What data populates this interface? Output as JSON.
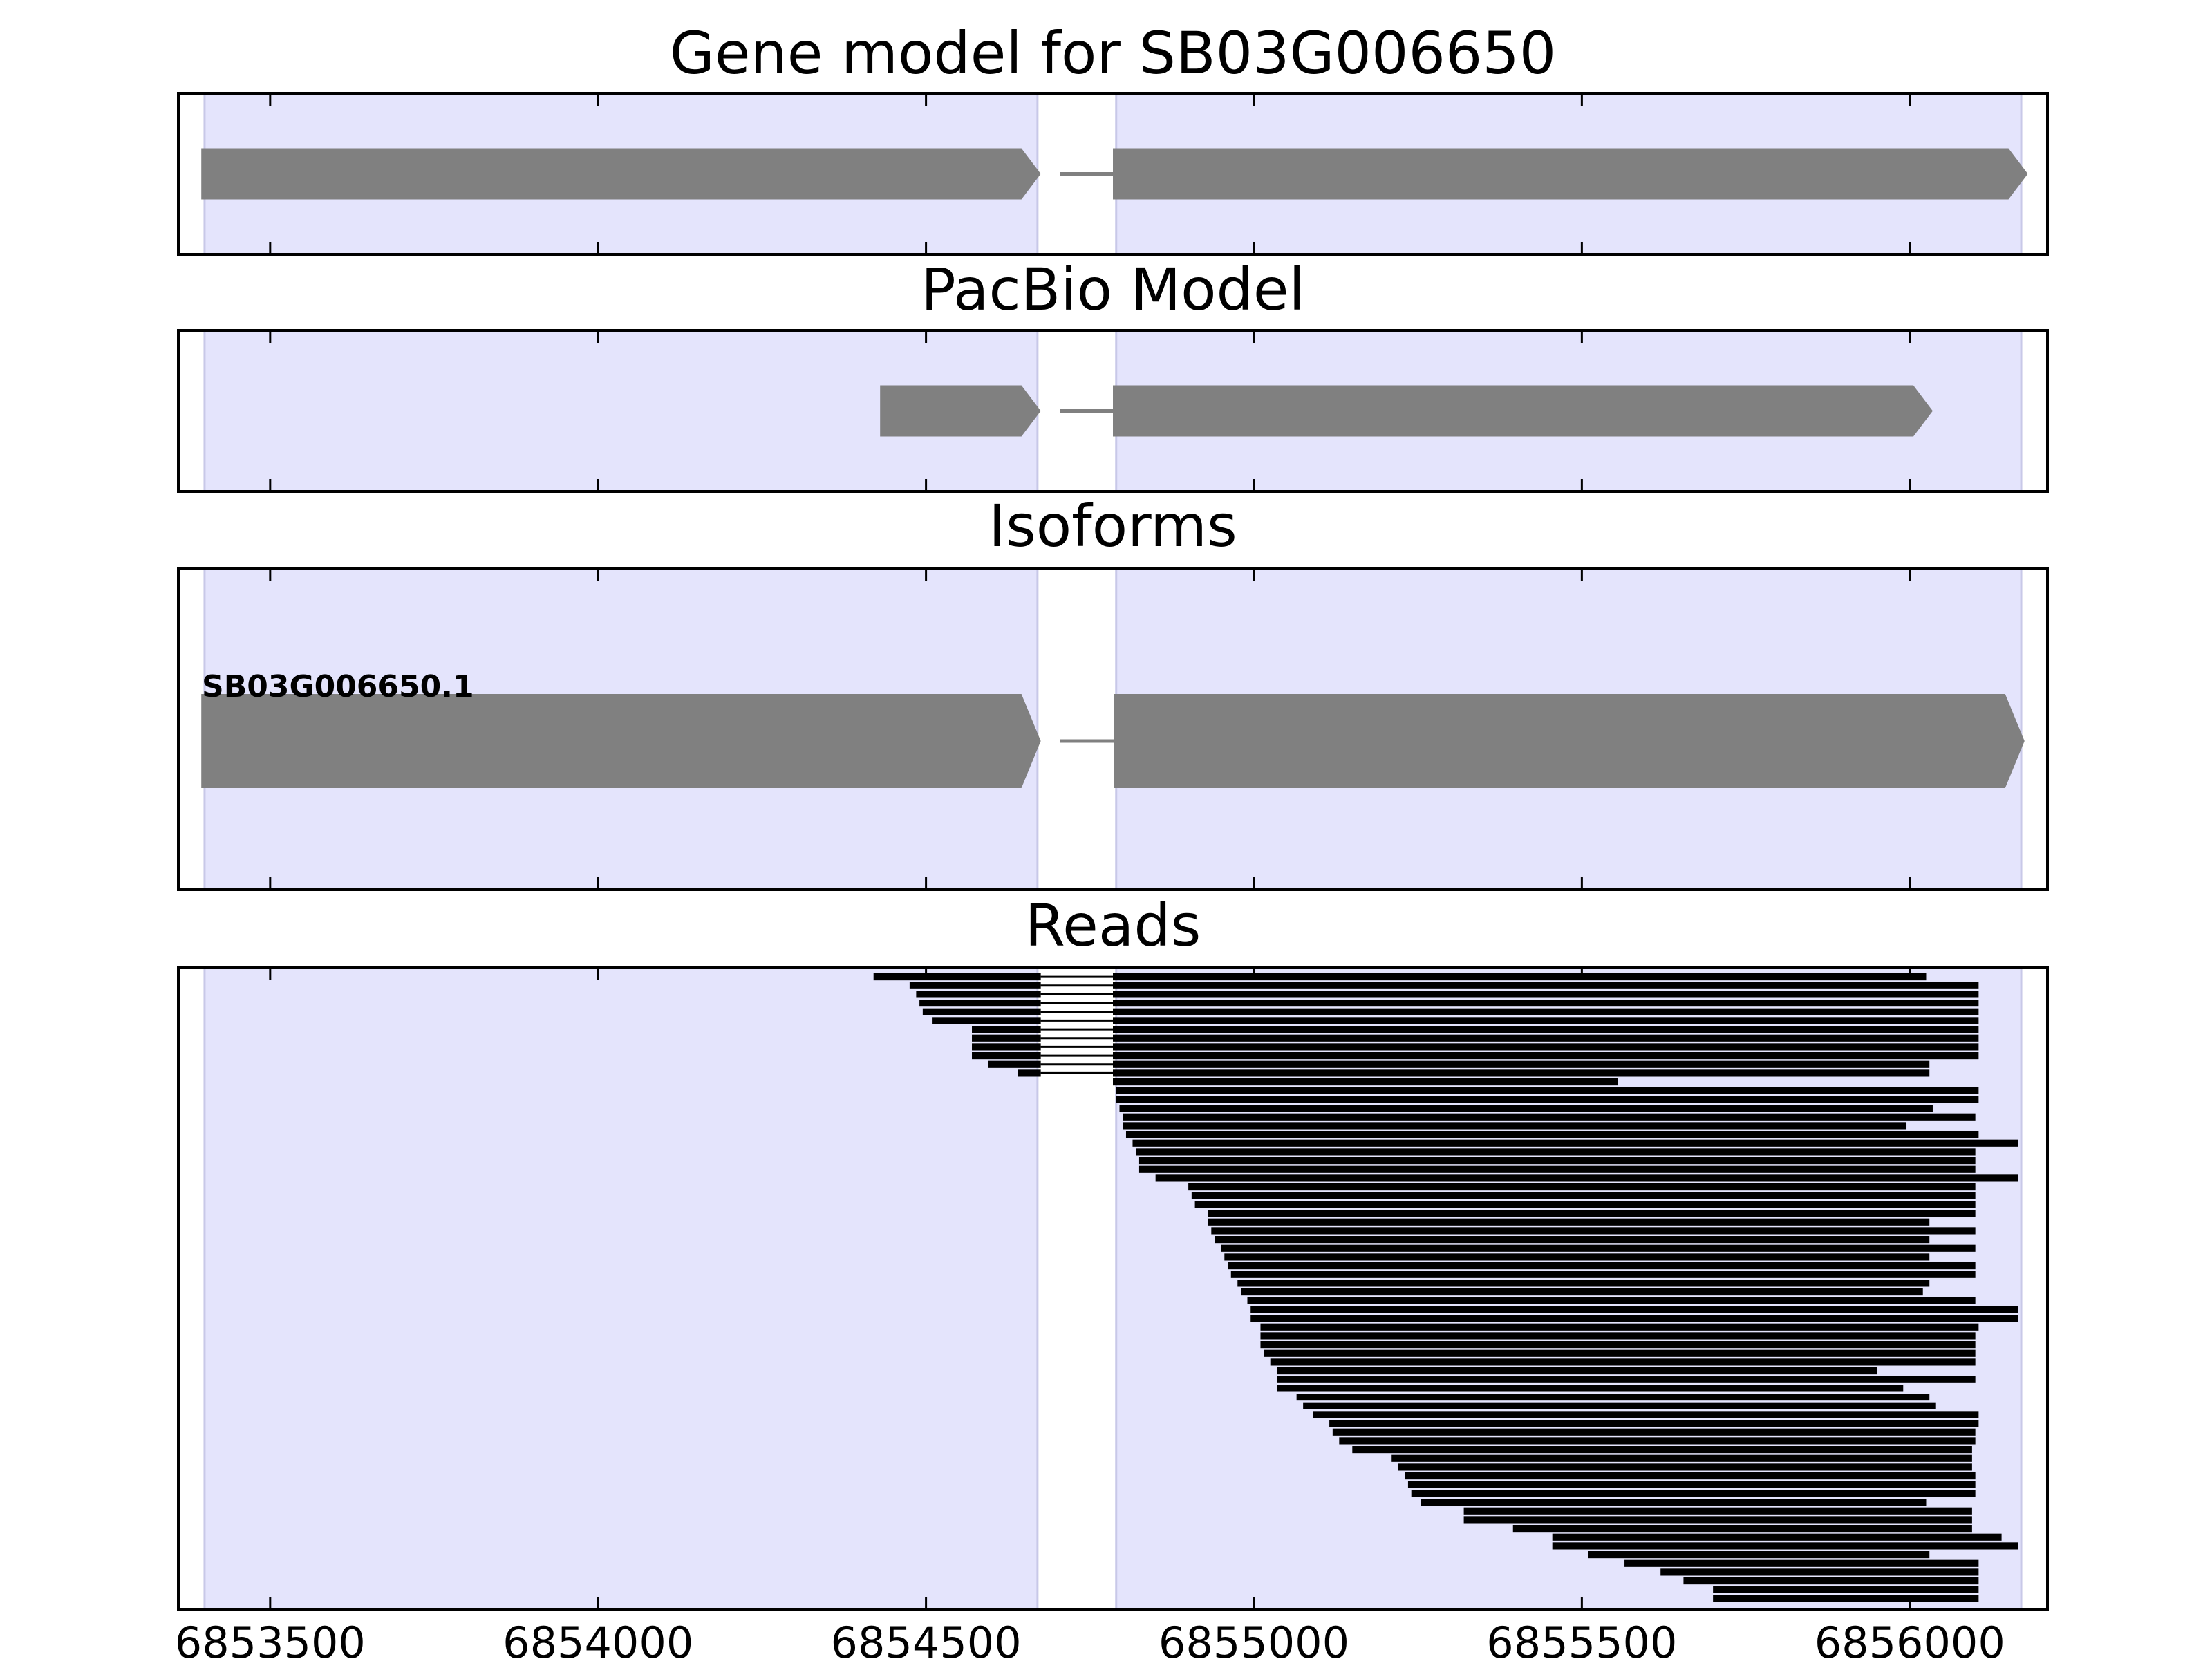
{
  "chart_data": {
    "type": "gene-track",
    "x_axis": {
      "ticks": [
        6853500,
        6854000,
        6854500,
        6855000,
        6855500,
        6856000
      ],
      "tick_labels": [
        "6853500",
        "6854000",
        "6854500",
        "6855000",
        "6855500",
        "6856000"
      ],
      "xlim": [
        6853360,
        6856210
      ]
    },
    "exon_regions": [
      [
        6853400,
        6854670
      ],
      [
        6854790,
        6856170
      ]
    ],
    "colors": {
      "exon_region": "#e4e4fc",
      "exon_region_edge": "#c8c8e8",
      "gene_block": "#808080",
      "read": "#000000",
      "intron": "#808080"
    },
    "panels": [
      {
        "id": "gene-model",
        "title": "Gene model for SB03G006650",
        "blocks": [
          {
            "start": 6853395,
            "end": 6854675,
            "arrow": false
          },
          {
            "start": 6854785,
            "end": 6856180,
            "arrow": true
          }
        ]
      },
      {
        "id": "pacbio-model",
        "title": "PacBio Model",
        "blocks": [
          {
            "start": 6854430,
            "end": 6854675,
            "arrow": false
          },
          {
            "start": 6854785,
            "end": 6856035,
            "arrow": true
          }
        ]
      },
      {
        "id": "isoforms",
        "title": "Isoforms",
        "isoform_label": "SB03G006650.1",
        "blocks": [
          {
            "start": 6853395,
            "end": 6854675,
            "arrow": false
          },
          {
            "start": 6854787,
            "end": 6856175,
            "arrow": true
          }
        ]
      },
      {
        "id": "reads",
        "title": "Reads",
        "junction_start": 6854675,
        "junction_end": 6854785,
        "reads": [
          {
            "start": 6854420,
            "end": 6856025
          },
          {
            "start": 6854475,
            "end": 6856105
          },
          {
            "start": 6854485,
            "end": 6856105
          },
          {
            "start": 6854490,
            "end": 6856105
          },
          {
            "start": 6854495,
            "end": 6856105
          },
          {
            "start": 6854510,
            "end": 6856105
          },
          {
            "start": 6854570,
            "end": 6856105
          },
          {
            "start": 6854570,
            "end": 6856105
          },
          {
            "start": 6854570,
            "end": 6856105
          },
          {
            "start": 6854570,
            "end": 6856105
          },
          {
            "start": 6854595,
            "end": 6856030
          },
          {
            "start": 6854640,
            "end": 6856030
          },
          {
            "start": 6854785,
            "end": 6855555
          },
          {
            "start": 6854790,
            "end": 6856105
          },
          {
            "start": 6854790,
            "end": 6856105
          },
          {
            "start": 6854795,
            "end": 6856035
          },
          {
            "start": 6854800,
            "end": 6856100
          },
          {
            "start": 6854800,
            "end": 6855995
          },
          {
            "start": 6854805,
            "end": 6856105
          },
          {
            "start": 6854815,
            "end": 6856165
          },
          {
            "start": 6854820,
            "end": 6856100
          },
          {
            "start": 6854825,
            "end": 6856100
          },
          {
            "start": 6854825,
            "end": 6856100
          },
          {
            "start": 6854850,
            "end": 6856165
          },
          {
            "start": 6854900,
            "end": 6856100
          },
          {
            "start": 6854905,
            "end": 6856100
          },
          {
            "start": 6854910,
            "end": 6856100
          },
          {
            "start": 6854930,
            "end": 6856100
          },
          {
            "start": 6854930,
            "end": 6856030
          },
          {
            "start": 6854935,
            "end": 6856100
          },
          {
            "start": 6854940,
            "end": 6856030
          },
          {
            "start": 6854950,
            "end": 6856100
          },
          {
            "start": 6854955,
            "end": 6856030
          },
          {
            "start": 6854960,
            "end": 6856100
          },
          {
            "start": 6854965,
            "end": 6856100
          },
          {
            "start": 6854975,
            "end": 6856030
          },
          {
            "start": 6854980,
            "end": 6856020
          },
          {
            "start": 6854990,
            "end": 6856100
          },
          {
            "start": 6854995,
            "end": 6856165
          },
          {
            "start": 6854995,
            "end": 6856165
          },
          {
            "start": 6855010,
            "end": 6856105
          },
          {
            "start": 6855010,
            "end": 6856100
          },
          {
            "start": 6855010,
            "end": 6856100
          },
          {
            "start": 6855015,
            "end": 6856100
          },
          {
            "start": 6855025,
            "end": 6856100
          },
          {
            "start": 6855035,
            "end": 6855950
          },
          {
            "start": 6855035,
            "end": 6856100
          },
          {
            "start": 6855035,
            "end": 6855990
          },
          {
            "start": 6855065,
            "end": 6856030
          },
          {
            "start": 6855075,
            "end": 6856040
          },
          {
            "start": 6855090,
            "end": 6856105
          },
          {
            "start": 6855115,
            "end": 6856105
          },
          {
            "start": 6855120,
            "end": 6856100
          },
          {
            "start": 6855130,
            "end": 6856100
          },
          {
            "start": 6855150,
            "end": 6856095
          },
          {
            "start": 6855210,
            "end": 6856095
          },
          {
            "start": 6855220,
            "end": 6856095
          },
          {
            "start": 6855230,
            "end": 6856100
          },
          {
            "start": 6855235,
            "end": 6856100
          },
          {
            "start": 6855240,
            "end": 6856100
          },
          {
            "start": 6855255,
            "end": 6856025
          },
          {
            "start": 6855320,
            "end": 6856095
          },
          {
            "start": 6855320,
            "end": 6856095
          },
          {
            "start": 6855395,
            "end": 6856095
          },
          {
            "start": 6855455,
            "end": 6856140
          },
          {
            "start": 6855455,
            "end": 6856165
          },
          {
            "start": 6855510,
            "end": 6856030
          },
          {
            "start": 6855565,
            "end": 6856105
          },
          {
            "start": 6855620,
            "end": 6856105
          },
          {
            "start": 6855655,
            "end": 6856105
          },
          {
            "start": 6855700,
            "end": 6856105
          },
          {
            "start": 6855700,
            "end": 6856105
          }
        ]
      }
    ]
  }
}
